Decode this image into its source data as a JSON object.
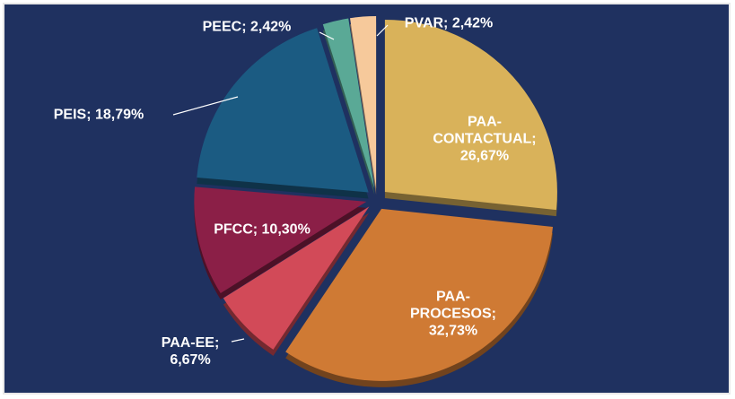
{
  "chart_data": {
    "type": "pie",
    "categories": [
      "PAA-CONTACTUAL",
      "PAA-PROCESOS",
      "PAA-EE",
      "PFCC",
      "PEIS",
      "PEEC",
      "PVAR"
    ],
    "values": [
      26.67,
      32.73,
      6.67,
      10.3,
      18.79,
      2.42,
      2.42
    ],
    "value_labels": [
      "26,67%",
      "32,73%",
      "6,67%",
      "10,30%",
      "18,79%",
      "2,42%",
      "2,42%"
    ],
    "label_separator": "; ",
    "colors": [
      "#d9b25a",
      "#cf7a34",
      "#d24a58",
      "#8b1f47",
      "#1b5b82",
      "#5aa996",
      "#f6c99b"
    ]
  }
}
